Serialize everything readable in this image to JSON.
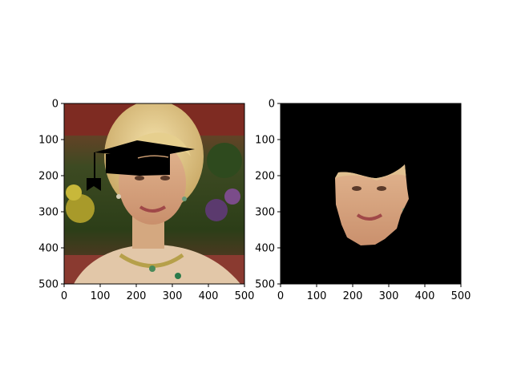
{
  "figure": {
    "background": "#ffffff"
  },
  "chart_data": [
    {
      "type": "image",
      "panel": "left",
      "content": "portrait photo of a smiling blonde woman with a black graduation cap overlay",
      "xlim": [
        0,
        500
      ],
      "ylim": [
        500,
        0
      ],
      "xticks": [
        0,
        100,
        200,
        300,
        400,
        500
      ],
      "yticks": [
        0,
        100,
        200,
        300,
        400,
        500
      ],
      "xtick_labels": [
        "0",
        "100",
        "200",
        "300",
        "400",
        "500"
      ],
      "ytick_labels": [
        "0",
        "100",
        "200",
        "300",
        "400",
        "500"
      ]
    },
    {
      "type": "image",
      "panel": "right",
      "content": "segmented face region of the same portrait on a black background",
      "xlim": [
        0,
        500
      ],
      "ylim": [
        500,
        0
      ],
      "xticks": [
        0,
        100,
        200,
        300,
        400,
        500
      ],
      "yticks": [
        0,
        100,
        200,
        300,
        400,
        500
      ],
      "xtick_labels": [
        "0",
        "100",
        "200",
        "300",
        "400",
        "500"
      ],
      "ytick_labels": [
        "0",
        "100",
        "200",
        "300",
        "400",
        "500"
      ]
    }
  ]
}
